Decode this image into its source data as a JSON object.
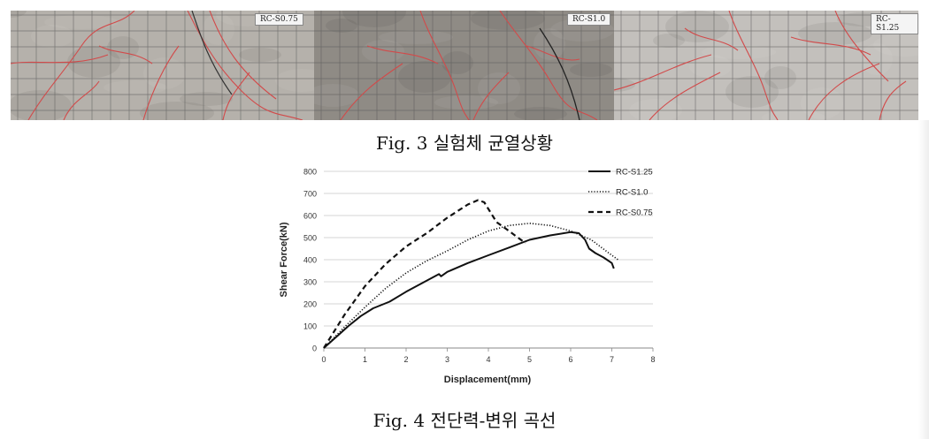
{
  "figure3": {
    "panels": [
      {
        "label": "RC-S0.75",
        "bg": "#b5b1ab"
      },
      {
        "label": "RC-S1.0",
        "bg": "#8f8b85"
      },
      {
        "label": "RC-S1.25",
        "bg": "#c3c0bc"
      }
    ],
    "caption": "Fig. 3 실험체 균열상황",
    "crack_color": "#d24a4a",
    "grid_color": "#5a5a5a"
  },
  "figure4": {
    "caption": "Fig. 4 전단력-변위 곡선"
  },
  "chart_data": {
    "type": "line",
    "xlabel": "Displacement(mm)",
    "ylabel": "Shear Force(kN)",
    "xlim": [
      0,
      8
    ],
    "ylim": [
      0,
      800
    ],
    "xticks": [
      "0",
      "1",
      "2",
      "3",
      "4",
      "5",
      "6",
      "7",
      "8"
    ],
    "yticks": [
      "0",
      "100",
      "200",
      "300",
      "400",
      "500",
      "600",
      "700",
      "800"
    ],
    "grid": "horizontal",
    "legend_position": "top-right",
    "series": [
      {
        "name": "RC-S1.25",
        "style": "solid",
        "x": [
          0,
          0.3,
          0.6,
          0.9,
          1.2,
          1.6,
          2.0,
          2.4,
          2.8,
          2.85,
          3.0,
          3.5,
          4.0,
          4.5,
          5.0,
          5.5,
          6.0,
          6.2,
          6.35,
          6.45,
          6.6,
          6.8,
          7.0,
          7.05
        ],
        "y": [
          0,
          50,
          100,
          145,
          180,
          210,
          255,
          295,
          335,
          325,
          345,
          385,
          420,
          455,
          490,
          510,
          525,
          520,
          490,
          450,
          430,
          410,
          385,
          360
        ]
      },
      {
        "name": "RC-S1.0",
        "style": "dotted",
        "x": [
          0,
          0.5,
          1.0,
          1.5,
          2.0,
          2.5,
          3.0,
          3.5,
          4.0,
          4.5,
          5.0,
          5.5,
          6.0,
          6.5,
          7.0,
          7.15
        ],
        "y": [
          0,
          95,
          185,
          270,
          340,
          395,
          440,
          490,
          530,
          555,
          565,
          555,
          530,
          490,
          420,
          400
        ]
      },
      {
        "name": "RC-S0.75",
        "style": "dashed",
        "x": [
          0,
          0.5,
          1.0,
          1.5,
          2.0,
          2.5,
          3.0,
          3.5,
          3.75,
          3.9,
          4.2,
          4.5,
          4.9
        ],
        "y": [
          0,
          150,
          280,
          380,
          460,
          520,
          590,
          650,
          670,
          660,
          570,
          530,
          475
        ]
      }
    ]
  }
}
